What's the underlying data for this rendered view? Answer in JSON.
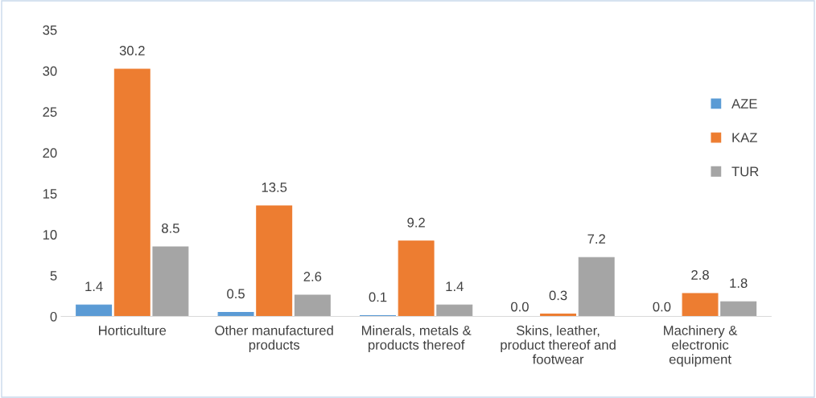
{
  "chart_data": {
    "type": "bar",
    "categories": [
      "Horticulture",
      "Other manufactured\nproducts",
      "Minerals, metals &\nproducts thereof",
      "Skins, leather,\nproduct thereof and\nfootwear",
      "Machinery &\nelectronic\nequipment"
    ],
    "series": [
      {
        "name": "AZE",
        "color": "#5b9bd5",
        "values": [
          1.4,
          0.5,
          0.1,
          0,
          0
        ],
        "value_labels": [
          "1.4",
          "0.5",
          "0.1",
          "0.0",
          "0.0"
        ]
      },
      {
        "name": "KAZ",
        "color": "#ed7d31",
        "values": [
          30.2,
          13.5,
          9.2,
          0.3,
          2.8
        ],
        "value_labels": [
          "30.2",
          "13.5",
          "9.2",
          "0.3",
          "2.8"
        ]
      },
      {
        "name": "TUR",
        "color": "#a5a5a5",
        "values": [
          8.5,
          2.6,
          1.4,
          7.2,
          1.8
        ],
        "value_labels": [
          "8.5",
          "2.6",
          "1.4",
          "7.2",
          "1.8"
        ]
      }
    ],
    "ylim": [
      0,
      35
    ],
    "yticks": [
      0,
      5,
      10,
      15,
      20,
      25,
      30,
      35
    ],
    "grid": false,
    "legend": "right"
  }
}
